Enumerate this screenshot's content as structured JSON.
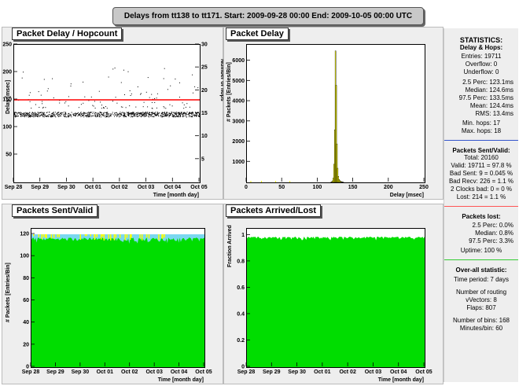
{
  "banner": "Delays from tt138 to tt171.  Start: 2009-09-28 00:00  End: 2009-10-05 00:00 UTC",
  "panels": {
    "delay_hop": {
      "title": "Packet Delay / Hopcount",
      "ylabel": "Delay [msec]",
      "y2label": "Number of hops",
      "xlabel": "Time [month day]"
    },
    "delay_hist": {
      "title": "Packet Delay",
      "ylabel": "# Packets [Entries/Bin]",
      "xlabel": "Delay [msec]"
    },
    "sent_valid": {
      "title": "Packets Sent/Valid",
      "ylabel": "# Packets [Entries/Bin]",
      "xlabel": "Time [month day]"
    },
    "arrived_lost": {
      "title": "Packets Arrived/Lost",
      "ylabel": "Fraction Arrived",
      "xlabel": "Time [month day]"
    }
  },
  "time_ticks": [
    "Sep 28",
    "Sep 29",
    "Sep 30",
    "Oct 01",
    "Oct 02",
    "Oct 03",
    "Oct 04",
    "Oct 05"
  ],
  "colors": {
    "green": "#00dd00",
    "yellow": "#ffff00",
    "red": "#ff0000",
    "cyan": "#7ad7f0",
    "blue": "#3355cc"
  },
  "chart_data": [
    {
      "type": "scatter",
      "title": "Packet Delay / Hopcount",
      "xlabel": "Time [month day]",
      "ylabel": "Delay [msec]",
      "y2label": "Number of hops",
      "x_ticks": [
        "Sep 28",
        "Sep 29",
        "Sep 30",
        "Oct 01",
        "Oct 02",
        "Oct 03",
        "Oct 04",
        "Oct 05"
      ],
      "ylim": [
        0,
        250
      ],
      "y_ticks": [
        50,
        100,
        150,
        200,
        250
      ],
      "y2lim": [
        0,
        30
      ],
      "y2_ticks": [
        5,
        10,
        15,
        20,
        25,
        30
      ],
      "baseline_delay": 124,
      "hops_line": 18,
      "series": [
        {
          "name": "Delay",
          "color": "#000000"
        },
        {
          "name": "Hops",
          "color": "#ff0000"
        }
      ]
    },
    {
      "type": "bar",
      "title": "Packet Delay",
      "xlabel": "Delay [msec]",
      "ylabel": "# Packets [Entries/Bin]",
      "xlim": [
        0,
        250
      ],
      "x_ticks": [
        0,
        50,
        100,
        150,
        200,
        250
      ],
      "ylim": [
        0,
        6800
      ],
      "y_ticks": [
        1000,
        2000,
        3000,
        4000,
        5000,
        6000
      ],
      "bins_x": [
        118,
        119,
        120,
        121,
        122,
        123,
        124,
        125,
        126,
        127,
        128,
        129,
        130,
        131,
        132,
        133,
        134,
        135
      ],
      "bins_y": [
        20,
        40,
        80,
        220,
        900,
        2600,
        6500,
        4800,
        1900,
        700,
        300,
        150,
        90,
        60,
        40,
        30,
        20,
        10
      ]
    },
    {
      "type": "area",
      "title": "Packets Sent/Valid",
      "xlabel": "Time [month day]",
      "ylabel": "# Packets [Entries/Bin]",
      "x_ticks": [
        "Sep 28",
        "Sep 29",
        "Sep 30",
        "Oct 01",
        "Oct 02",
        "Oct 03",
        "Oct 04",
        "Oct 05"
      ],
      "ylim": [
        0,
        125
      ],
      "y_ticks": [
        0,
        20,
        40,
        60,
        80,
        100,
        120
      ],
      "sent_level": 120,
      "valid_level": 117,
      "bins": 168
    },
    {
      "type": "area",
      "title": "Packets Arrived/Lost",
      "xlabel": "Time [month day]",
      "ylabel": "Fraction Arrived",
      "x_ticks": [
        "Sep 28",
        "Sep 29",
        "Sep 30",
        "Oct 01",
        "Oct 02",
        "Oct 03",
        "Oct 04",
        "Oct 05"
      ],
      "ylim": [
        0,
        1.05
      ],
      "y_ticks": [
        0,
        0.2,
        0.4,
        0.6,
        0.8,
        1
      ],
      "arrived_fraction": 0.99,
      "bins": 168
    }
  ],
  "stats": {
    "heading": "STATISTICS:",
    "delay": {
      "title": "Delay & Hops:",
      "entries": "Entries: 19711",
      "overflow": "Overflow: 0",
      "underflow": "Underflow: 0",
      "perc25": "2.5 Perc:  123.1ms",
      "median": "Median:  124.6ms",
      "perc975": "97.5 Perc:  133.5ms",
      "mean": "Mean:  124.4ms",
      "rms": "RMS:    13.4ms",
      "minhops": "Min. hops: 17",
      "maxhops": "Max. hops: 18"
    },
    "sentvalid": {
      "title": "Packets Sent/Valid:",
      "total": "Total: 20160",
      "valid": "Valid: 19711 = 97.8 %",
      "badsent": "Bad Sent: 9 = 0.045 %",
      "badrecv": "Bad Recv: 226 = 1.1 %",
      "clocks": "2 Clocks bad: 0 = 0 %",
      "lost": "Lost: 214 = 1.1 %"
    },
    "lost": {
      "title": "Packets lost:",
      "perc25": "2.5 Perc:     0.0%",
      "median": "Median:     0.8%",
      "perc975": "97.5 Perc:     3.3%",
      "uptime": "Uptime: 100 %"
    },
    "overall": {
      "title": "Over-all statistic:",
      "period": "Time period: 7 days",
      "routing1": "Number of routing",
      "routing2": "vVectors: 8",
      "flaps": "Flaps: 807",
      "bins": "Number of bins: 168",
      "minutes": "Minutes/bin: 60"
    }
  }
}
